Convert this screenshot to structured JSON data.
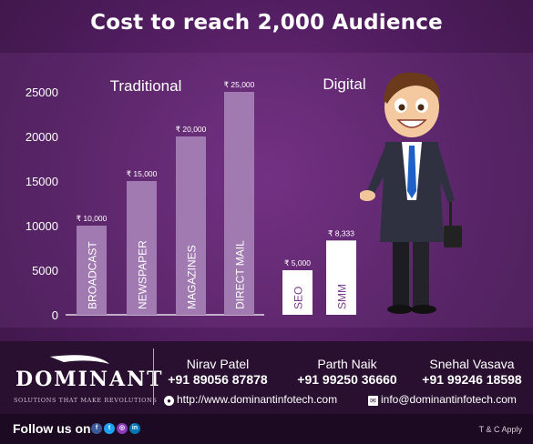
{
  "title": "Cost to reach 2,000 Audience",
  "chart_data": {
    "type": "bar",
    "groups": [
      "Traditional",
      "Digital"
    ],
    "categories": [
      "BROADCAST",
      "NEWSPAPER",
      "MAGAZINES",
      "DIRECT MAIL",
      "SEO",
      "SMM"
    ],
    "category_group": [
      "Traditional",
      "Traditional",
      "Traditional",
      "Traditional",
      "Digital",
      "Digital"
    ],
    "values": [
      10000,
      15000,
      20000,
      25000,
      5000,
      8333
    ],
    "data_labels": [
      "₹ 10,000",
      "₹ 15,000",
      "₹ 20,000",
      "₹ 25,000",
      "₹ 5,000",
      "₹ 8,333"
    ],
    "yticks": [
      "0",
      "5000",
      "10000",
      "15000",
      "20000",
      "25000"
    ],
    "ylim": [
      0,
      25000
    ],
    "grid": false,
    "bar_color": "#a07ab0",
    "bar_label_color": "#ffffff",
    "digital_bar_color": "#ffffff",
    "digital_label_color": "#7a3c8a"
  },
  "footer": {
    "logo_name": "DOMINANT",
    "tagline": "SOLUTIONS THAT MAKE REVOLUTIONS",
    "contacts": [
      {
        "name": "Nirav Patel",
        "phone": "+91 89056 87878"
      },
      {
        "name": "Parth Naik",
        "phone": "+91 99250 36660"
      },
      {
        "name": "Snehal Vasava",
        "phone": "+91 99246 18598"
      }
    ],
    "website": "http://www.dominantinfotech.com",
    "email": "info@dominantinfotech.com",
    "follow_label": "Follow us on :",
    "social_icons": [
      "facebook-icon",
      "twitter-icon",
      "instagram-icon",
      "linkedin-icon"
    ],
    "terms": "T & C  Apply"
  },
  "colors": {
    "background": "#4e1c5c",
    "footer": "#2a1030",
    "bottom_bar": "#1c0a22"
  }
}
